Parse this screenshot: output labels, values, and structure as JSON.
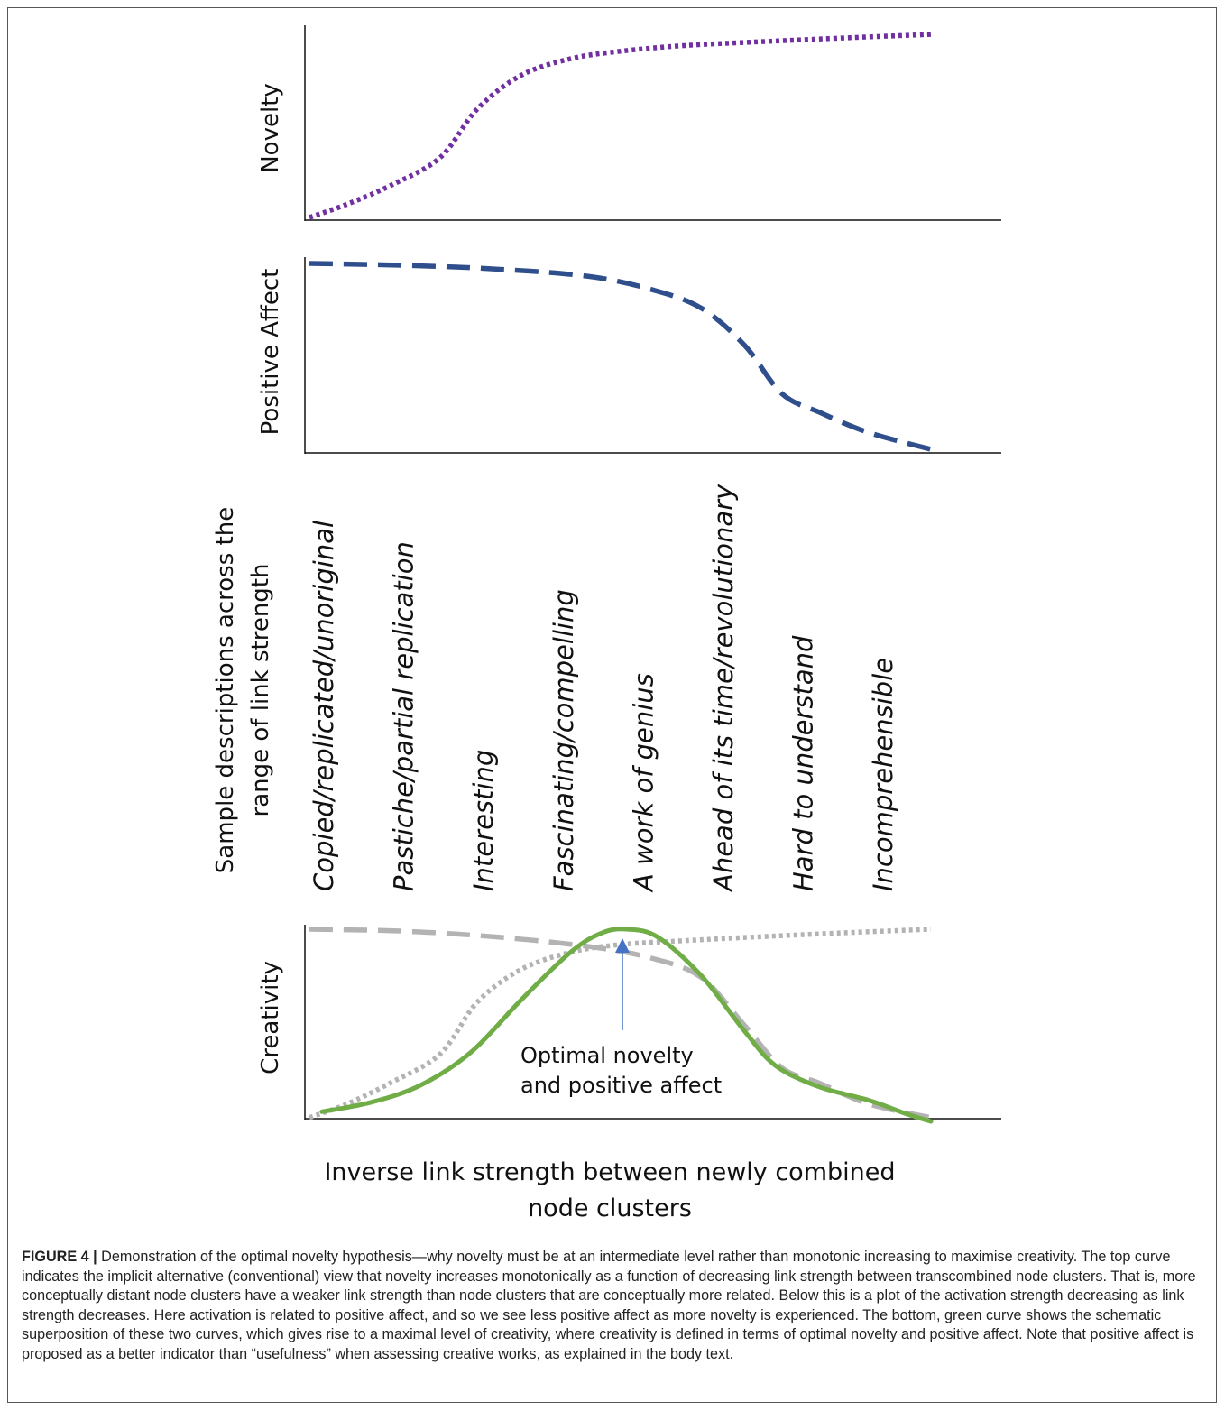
{
  "chart_data": [
    {
      "type": "line",
      "ylabel": "Novelty",
      "series": [
        {
          "color": "#7030A0",
          "style": "dotted",
          "x": [
            0,
            0.06,
            0.13,
            0.21,
            0.27,
            0.34,
            0.42,
            0.5,
            0.6,
            0.72,
            0.85,
            1.0
          ],
          "y": [
            0.0,
            0.07,
            0.17,
            0.32,
            0.58,
            0.76,
            0.85,
            0.89,
            0.92,
            0.94,
            0.96,
            0.98
          ]
        }
      ]
    },
    {
      "type": "line",
      "ylabel": "Positive Affect",
      "series": [
        {
          "color": "#2F4E8C",
          "style": "dashed",
          "x": [
            0,
            0.15,
            0.3,
            0.45,
            0.55,
            0.63,
            0.7,
            0.76,
            0.82,
            0.9,
            1.0
          ],
          "y": [
            1.0,
            0.99,
            0.97,
            0.93,
            0.86,
            0.76,
            0.56,
            0.3,
            0.2,
            0.09,
            0.0
          ]
        }
      ]
    },
    {
      "type": "line",
      "ylabel": "Creativity",
      "xlabel": "Inverse link strength between newly combined node clusters",
      "series": [
        {
          "color": "#70AD47",
          "style": "solid",
          "x": [
            0.02,
            0.1,
            0.18,
            0.26,
            0.34,
            0.42,
            0.47,
            0.51,
            0.56,
            0.63,
            0.7,
            0.75,
            0.82,
            0.9,
            0.96,
            1.0
          ],
          "y": [
            0.05,
            0.1,
            0.19,
            0.36,
            0.63,
            0.88,
            0.98,
            1.0,
            0.96,
            0.76,
            0.47,
            0.29,
            0.18,
            0.11,
            0.04,
            0.0
          ]
        },
        {
          "color": "#B3B3B3",
          "style": "dashed",
          "x": [
            0,
            0.15,
            0.3,
            0.45,
            0.55,
            0.63,
            0.7,
            0.76,
            0.82,
            0.9,
            1.0
          ],
          "y": [
            1.0,
            0.99,
            0.96,
            0.91,
            0.85,
            0.75,
            0.5,
            0.28,
            0.2,
            0.09,
            0.02
          ]
        },
        {
          "color": "#B3B3B3",
          "style": "dotted",
          "x": [
            0,
            0.06,
            0.13,
            0.21,
            0.27,
            0.34,
            0.42,
            0.5,
            0.6,
            0.72,
            0.85,
            1.0
          ],
          "y": [
            0.02,
            0.09,
            0.2,
            0.35,
            0.62,
            0.79,
            0.88,
            0.92,
            0.94,
            0.96,
            0.98,
            1.0
          ]
        }
      ],
      "annotation": "Optimal novelty and positive affect"
    }
  ],
  "descriptions": {
    "title_line1": "Sample descriptions across the",
    "title_line2": "range of link strength",
    "items": [
      "Copied/replicated/unoriginal",
      "Pastiche/partial replication",
      "Interesting",
      "Fascinating/compelling",
      "A work of genius",
      "Ahead of its time/revolutionary",
      "Hard to understand",
      "Incomprehensible"
    ]
  },
  "annotation": {
    "line1": "Optimal novelty",
    "line2": "and positive affect",
    "arrow_color": "#4472C4"
  },
  "xtitle": {
    "line1": "Inverse link strength between newly combined",
    "line2": "node clusters"
  },
  "caption": {
    "label": "FIGURE 4 |",
    "text": " Demonstration of the optimal novelty hypothesis—why novelty must be at an intermediate level rather than monotonic increasing to maximise creativity. The top curve indicates the implicit alternative (conventional) view that novelty increases monotonically as a function of decreasing link strength between transcombined node clusters. That is, more conceptually distant node clusters have a weaker link strength than node clusters that are conceptually more related. Below this is a plot of the activation strength decreasing as link strength decreases. Here activation is related to positive affect, and so we see less positive affect as more novelty is experienced. The bottom, green curve shows the schematic superposition of these two curves, which gives rise to a maximal level of creativity, where creativity is defined in terms of optimal novelty and positive affect. Note that positive affect is proposed as a better indicator than “usefulness” when assessing creative works, as explained in the body text."
  }
}
